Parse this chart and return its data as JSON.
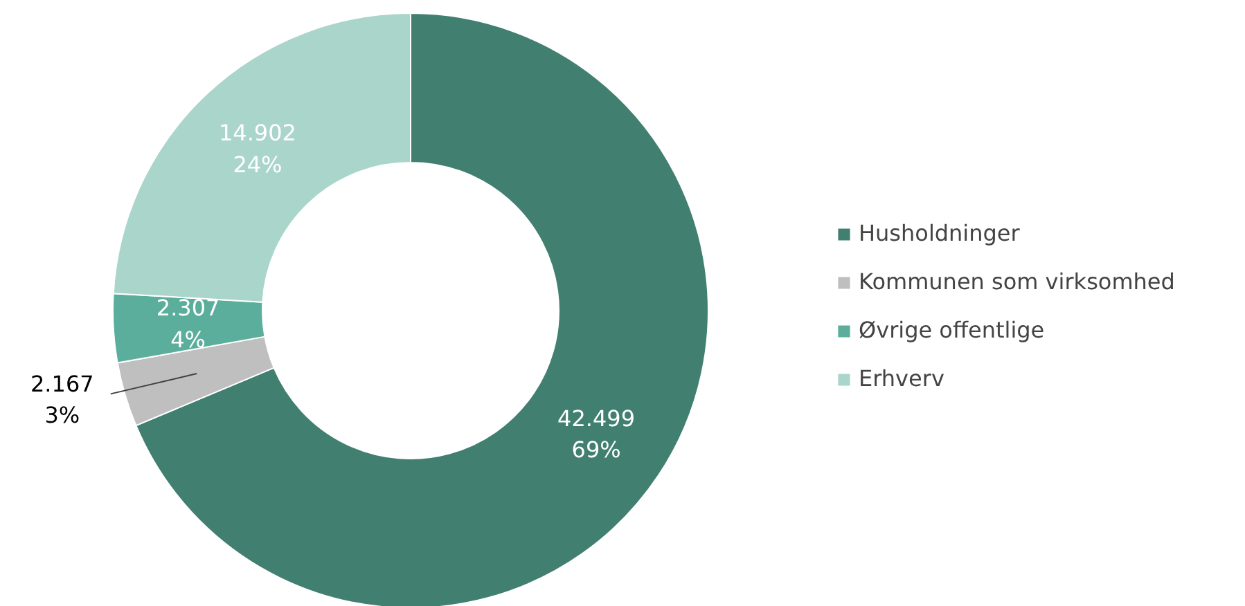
{
  "chart_data": {
    "type": "donut",
    "categories": [
      "Husholdninger",
      "Kommunen som virksomhed",
      "Øvrige offentlige",
      "Erhverv"
    ],
    "values": [
      42499,
      2167,
      2307,
      14902
    ],
    "colors": [
      "#417f70",
      "#bfbfbf",
      "#5aae9b",
      "#aad5ca"
    ],
    "value_labels": [
      "42.499\n69%",
      "2.167\n3%",
      "2.307\n4%",
      "14.902\n24%"
    ],
    "legend": "right"
  }
}
